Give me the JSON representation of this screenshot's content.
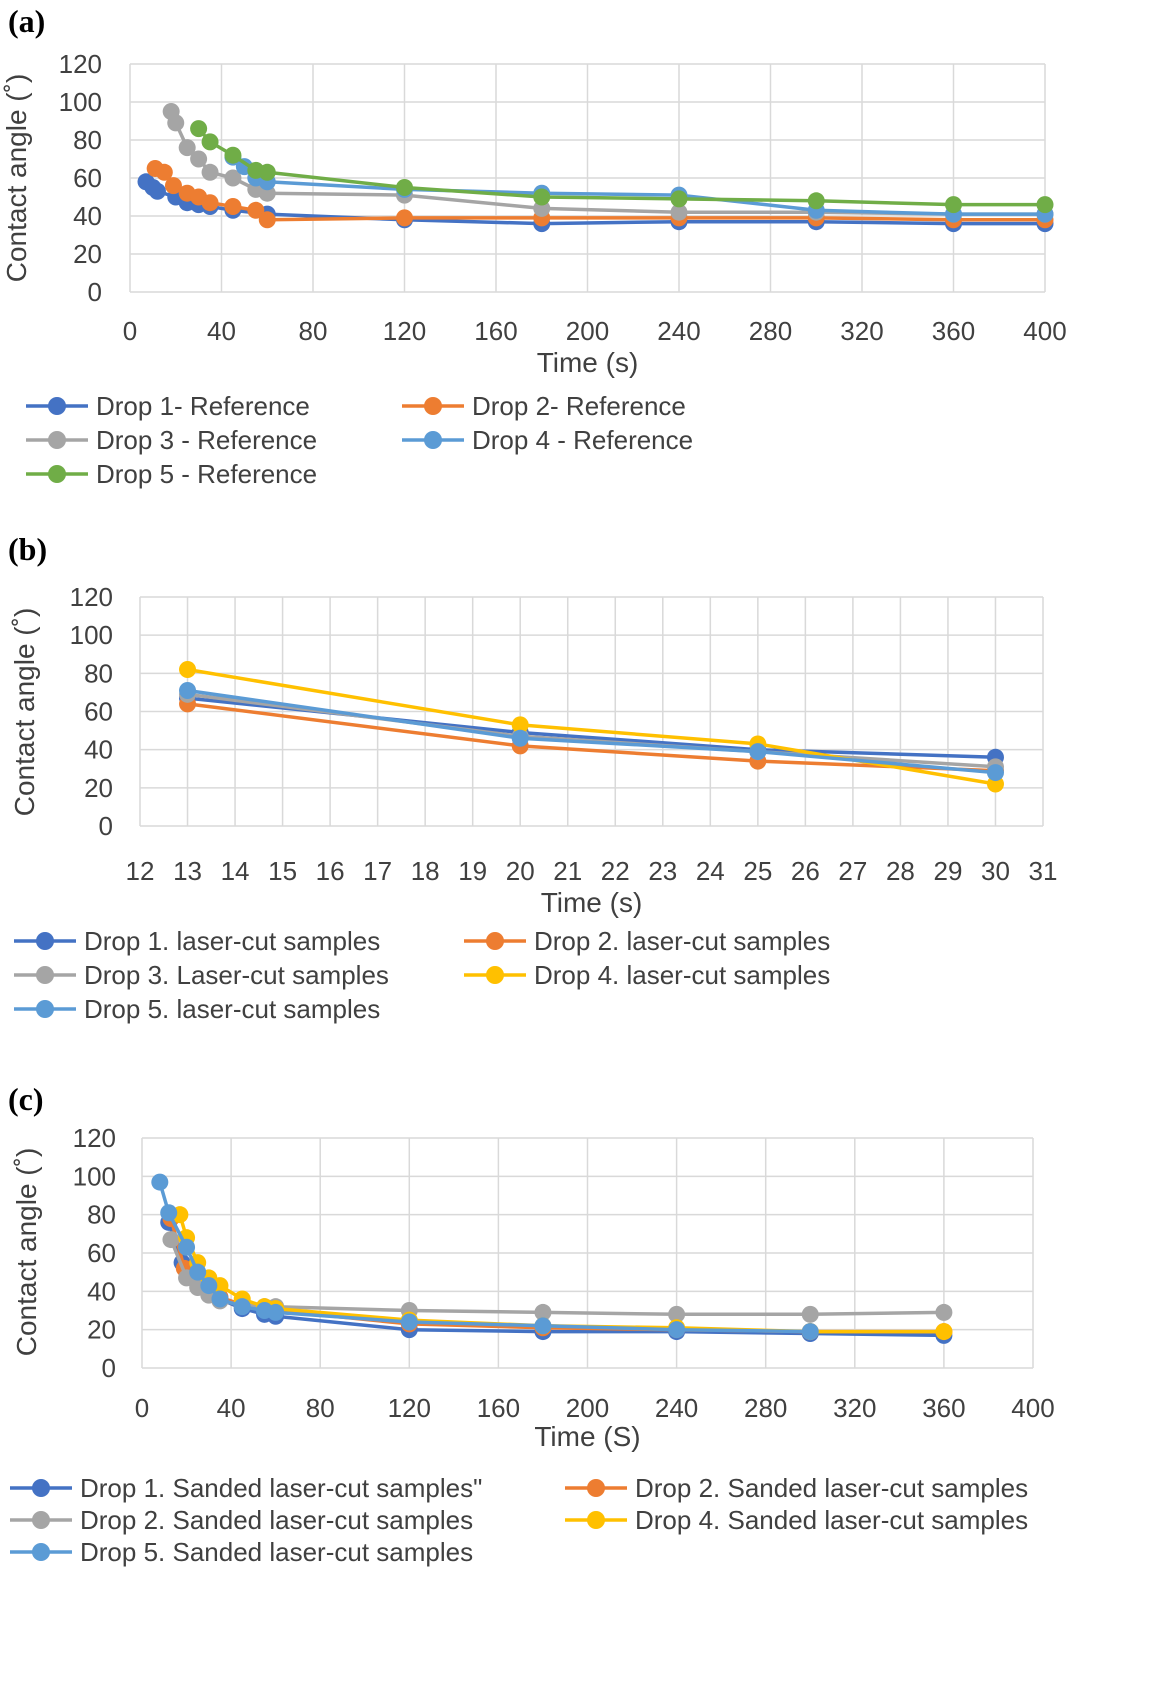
{
  "figure": {
    "panels": [
      "(a)",
      "(b)",
      "(c)"
    ]
  },
  "chart_data": [
    {
      "type": "line",
      "panel_label": "(a)",
      "xlabel": "Time (s)",
      "ylabel": "Contact angle (˚)",
      "xlim": [
        0,
        400
      ],
      "ylim": [
        0,
        120
      ],
      "xticks": [
        0,
        40,
        80,
        120,
        160,
        200,
        240,
        280,
        320,
        360,
        400
      ],
      "yticks": [
        0,
        20,
        40,
        60,
        80,
        100,
        120
      ],
      "grid": true,
      "legend_position": "bottom",
      "series": [
        {
          "name": "Drop 1- Reference",
          "color": "#4472C4",
          "x": [
            7,
            10,
            12,
            20,
            25,
            30,
            35,
            45,
            60,
            120,
            180,
            240,
            300,
            360,
            400
          ],
          "y": [
            58,
            55,
            53,
            50,
            47,
            46,
            45,
            43,
            41,
            38,
            36,
            37,
            37,
            36,
            36
          ]
        },
        {
          "name": "Drop 2- Reference",
          "color": "#ED7D31",
          "x": [
            11,
            15,
            19,
            25,
            30,
            35,
            45,
            55,
            60,
            120,
            180,
            240,
            300,
            360,
            400
          ],
          "y": [
            65,
            63,
            56,
            52,
            50,
            47,
            45,
            43,
            38,
            39,
            39,
            39,
            39,
            38,
            38
          ]
        },
        {
          "name": "Drop 3 - Reference",
          "color": "#A5A5A5",
          "x": [
            18,
            20,
            25,
            30,
            35,
            45,
            55,
            60,
            120,
            180,
            240,
            300,
            360,
            400
          ],
          "y": [
            95,
            89,
            76,
            70,
            63,
            60,
            54,
            52,
            51,
            44,
            42,
            42,
            41,
            41
          ]
        },
        {
          "name": "Drop 4 - Reference",
          "color": "#5B9BD5",
          "x": [
            45,
            50,
            55,
            60,
            120,
            180,
            240,
            300,
            360,
            400
          ],
          "y": [
            71,
            66,
            60,
            58,
            54,
            52,
            51,
            43,
            41,
            41
          ]
        },
        {
          "name": "Drop 5 - Reference",
          "color": "#70AD47",
          "x": [
            30,
            35,
            45,
            55,
            60,
            120,
            180,
            240,
            300,
            360,
            400
          ],
          "y": [
            86,
            79,
            72,
            64,
            63,
            55,
            50,
            49,
            48,
            46,
            46
          ]
        }
      ]
    },
    {
      "type": "line",
      "panel_label": "(b)",
      "xlabel": "Time (s)",
      "ylabel": "Contact angle (˚)",
      "xlim": [
        12,
        31
      ],
      "ylim": [
        0,
        120
      ],
      "xticks": [
        12,
        13,
        14,
        15,
        16,
        17,
        18,
        19,
        20,
        21,
        22,
        23,
        24,
        25,
        26,
        27,
        28,
        29,
        30,
        31
      ],
      "yticks": [
        0,
        20,
        40,
        60,
        80,
        100,
        120
      ],
      "grid": true,
      "legend_position": "bottom",
      "series": [
        {
          "name": "Drop 1. laser-cut samples",
          "color": "#4472C4",
          "x": [
            13,
            20,
            25,
            30
          ],
          "y": [
            67,
            49,
            40,
            36
          ]
        },
        {
          "name": "Drop 2. laser-cut samples",
          "color": "#ED7D31",
          "x": [
            13,
            20,
            25,
            30
          ],
          "y": [
            64,
            42,
            34,
            29
          ]
        },
        {
          "name": "Drop 3. Laser-cut samples",
          "color": "#A5A5A5",
          "x": [
            13,
            20,
            25,
            30
          ],
          "y": [
            69,
            47,
            39,
            31
          ]
        },
        {
          "name": "Drop 4. laser-cut samples",
          "color": "#FFC000",
          "x": [
            13,
            20,
            25,
            30
          ],
          "y": [
            82,
            53,
            43,
            22
          ]
        },
        {
          "name": "Drop 5. laser-cut samples",
          "color": "#5B9BD5",
          "x": [
            13,
            20,
            25,
            30
          ],
          "y": [
            71,
            46,
            39,
            28
          ]
        }
      ]
    },
    {
      "type": "line",
      "panel_label": "(c)",
      "xlabel": "Time (S)",
      "ylabel": "Contact angle (˚)",
      "xlim": [
        0,
        400
      ],
      "ylim": [
        0,
        120
      ],
      "xticks": [
        0,
        40,
        80,
        120,
        160,
        200,
        240,
        280,
        320,
        360,
        400
      ],
      "yticks": [
        0,
        20,
        40,
        60,
        80,
        100,
        120
      ],
      "grid": true,
      "legend_position": "bottom",
      "series": [
        {
          "name": "Drop 1. Sanded laser-cut samples\"",
          "color": "#4472C4",
          "x": [
            12,
            18,
            25,
            30,
            35,
            45,
            55,
            60,
            120,
            180,
            240,
            300,
            360
          ],
          "y": [
            76,
            55,
            46,
            41,
            36,
            31,
            28,
            27,
            20,
            19,
            19,
            18,
            17
          ]
        },
        {
          "name": "Drop 2. Sanded laser-cut samples",
          "color": "#ED7D31",
          "x": [
            13,
            19,
            25,
            30,
            35,
            45,
            55,
            60,
            120,
            180,
            240,
            300,
            360
          ],
          "y": [
            78,
            52,
            46,
            41,
            37,
            33,
            31,
            30,
            23,
            21,
            20,
            19,
            19
          ]
        },
        {
          "name": "Drop 2. Sanded laser-cut samples",
          "color": "#A5A5A5",
          "x": [
            13,
            20,
            25,
            30,
            35,
            45,
            55,
            60,
            120,
            180,
            240,
            300,
            360
          ],
          "y": [
            67,
            47,
            42,
            38,
            35,
            33,
            32,
            32,
            30,
            29,
            28,
            28,
            29
          ]
        },
        {
          "name": "Drop 4. Sanded laser-cut samples",
          "color": "#FFC000",
          "x": [
            17,
            20,
            25,
            30,
            35,
            45,
            55,
            60,
            120,
            180,
            240,
            300,
            360
          ],
          "y": [
            80,
            68,
            55,
            47,
            43,
            36,
            32,
            31,
            25,
            22,
            21,
            19,
            19
          ]
        },
        {
          "name": "Drop 5. Sanded laser-cut samples",
          "color": "#5B9BD5",
          "x": [
            8,
            12,
            20,
            25,
            30,
            35,
            45,
            55,
            60,
            120,
            180,
            240,
            300
          ],
          "y": [
            97,
            81,
            63,
            50,
            43,
            36,
            32,
            30,
            29,
            24,
            22,
            20,
            19
          ]
        }
      ]
    }
  ]
}
